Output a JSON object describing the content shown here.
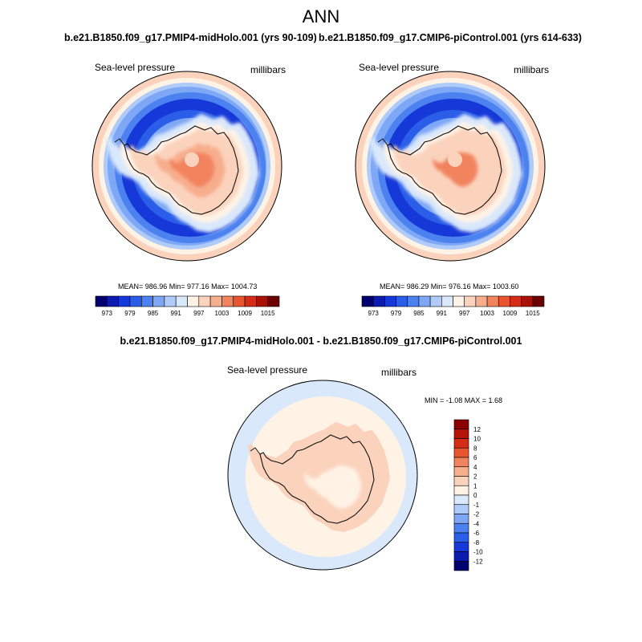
{
  "page": {
    "title": "ANN"
  },
  "panel_left": {
    "case": "b.e21.B1850.f09_g17.PMIP4-midHolo.001 (yrs 90-109)",
    "variable": "Sea-level pressure",
    "units": "millibars",
    "stats": "MEAN= 986.96  Min= 977.16  Max= 1004.73"
  },
  "panel_right": {
    "case": "b.e21.B1850.f09_g17.CMIP6-piControl.001 (yrs 614-633)",
    "variable": "Sea-level pressure",
    "units": "millibars",
    "stats": "MEAN= 986.29  Min= 976.16  Max= 1003.60"
  },
  "panel_diff": {
    "case": "b.e21.B1850.f09_g17.PMIP4-midHolo.001 - b.e21.B1850.f09_g17.CMIP6-piControl.001",
    "variable": "Sea-level pressure",
    "units": "millibars",
    "stats": "MIN =  -1.08 MAX =   1.68"
  },
  "chart_data": [
    {
      "type": "heatmap",
      "title": "b.e21.B1850.f09_g17.PMIP4-midHolo.001 (yrs 90-109)",
      "variable": "Sea-level pressure",
      "units": "millibars",
      "projection": "south polar stereographic",
      "mean": 986.96,
      "min": 977.16,
      "max": 1004.73,
      "colorbar": {
        "orientation": "horizontal",
        "tick_labels": [
          "973",
          "979",
          "985",
          "991",
          "997",
          "1003",
          "1009",
          "1015"
        ],
        "levels": [
          970,
          973,
          976,
          979,
          982,
          985,
          988,
          991,
          994,
          997,
          1000,
          1003,
          1006,
          1009,
          1012,
          1015
        ],
        "colors": [
          "#02006e",
          "#0a1bad",
          "#1638d8",
          "#2a5ee8",
          "#4b82f0",
          "#7ea8f6",
          "#aecbfa",
          "#d9e8fb",
          "#fff3e6",
          "#fbd3bd",
          "#f7ae8d",
          "#f2835f",
          "#e9552f",
          "#d42c16",
          "#a81207",
          "#6b0000"
        ]
      },
      "field": {
        "continent_interior": [
          1000,
          1004
        ],
        "continent_coast": [
          994,
          997
        ],
        "circumpolar_trough": [
          976,
          982
        ],
        "outer_ring_edge": [
          997,
          1003
        ]
      }
    },
    {
      "type": "heatmap",
      "title": "b.e21.B1850.f09_g17.CMIP6-piControl.001 (yrs 614-633)",
      "variable": "Sea-level pressure",
      "units": "millibars",
      "projection": "south polar stereographic",
      "mean": 986.29,
      "min": 976.16,
      "max": 1003.6,
      "colorbar": {
        "orientation": "horizontal",
        "tick_labels": [
          "973",
          "979",
          "985",
          "991",
          "997",
          "1003",
          "1009",
          "1015"
        ],
        "levels": [
          970,
          973,
          976,
          979,
          982,
          985,
          988,
          991,
          994,
          997,
          1000,
          1003,
          1006,
          1009,
          1012,
          1015
        ],
        "colors": [
          "#02006e",
          "#0a1bad",
          "#1638d8",
          "#2a5ee8",
          "#4b82f0",
          "#7ea8f6",
          "#aecbfa",
          "#d9e8fb",
          "#fff3e6",
          "#fbd3bd",
          "#f7ae8d",
          "#f2835f",
          "#e9552f",
          "#d42c16",
          "#a81207",
          "#6b0000"
        ]
      },
      "field": {
        "continent_interior": [
          999,
          1003
        ],
        "continent_coast": [
          994,
          997
        ],
        "circumpolar_trough": [
          976,
          982
        ],
        "outer_ring_edge": [
          997,
          1003
        ]
      }
    },
    {
      "type": "heatmap",
      "title": "b.e21.B1850.f09_g17.PMIP4-midHolo.001 - b.e21.B1850.f09_g17.CMIP6-piControl.001",
      "variable": "Sea-level pressure",
      "units": "millibars",
      "projection": "south polar stereographic",
      "min": -1.08,
      "max": 1.68,
      "colorbar": {
        "orientation": "vertical",
        "tick_labels": [
          "12",
          "10",
          "8",
          "6",
          "4",
          "2",
          "1",
          "0",
          "-1",
          "-2",
          "-4",
          "-6",
          "-8",
          "-10",
          "-12"
        ],
        "colors": [
          "#8b0000",
          "#b31408",
          "#d42c16",
          "#e9552f",
          "#f2835f",
          "#f7ae8d",
          "#fbd3bd",
          "#fff3e6",
          "#d9e8fb",
          "#aecbfa",
          "#7ea8f6",
          "#4b82f0",
          "#2a5ee8",
          "#1638d8",
          "#0a1bad",
          "#02006e"
        ]
      },
      "field": {
        "outer_ring": [
          -1,
          0
        ],
        "middle_band": [
          0,
          1
        ],
        "continent_and_surroundings": [
          1,
          2
        ]
      }
    }
  ]
}
